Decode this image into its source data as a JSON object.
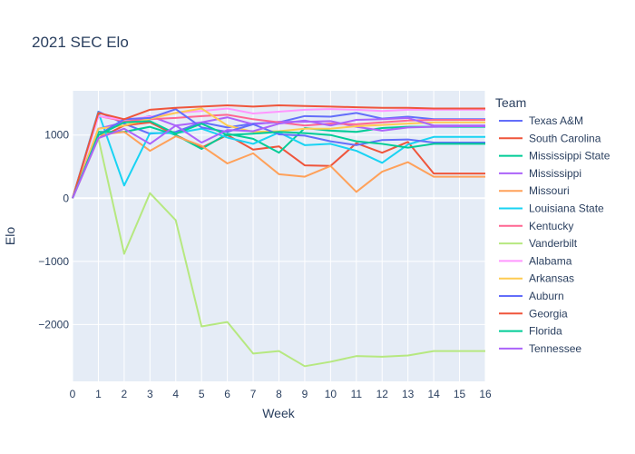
{
  "chart_data": {
    "type": "line",
    "title": "2021 SEC Elo",
    "xlabel": "Week",
    "ylabel": "Elo",
    "legend_title": "Team",
    "legend_position": "right",
    "grid": true,
    "xlim": [
      0,
      16
    ],
    "ylim": [
      -2900,
      1700
    ],
    "x": [
      0,
      1,
      2,
      3,
      4,
      5,
      6,
      7,
      8,
      9,
      10,
      11,
      12,
      13,
      14,
      15,
      16
    ],
    "x_ticks": [
      0,
      1,
      2,
      3,
      4,
      5,
      6,
      7,
      8,
      9,
      10,
      11,
      12,
      13,
      14,
      15,
      16
    ],
    "y_ticks": [
      -2000,
      -1000,
      0,
      1000
    ],
    "y_tick_labels": [
      "−2000",
      "−1000",
      "0",
      "1000"
    ],
    "series": [
      {
        "name": "Texas A&M",
        "color": "#636efa",
        "values": [
          0,
          1370,
          1180,
          1020,
          1050,
          1200,
          1120,
          1180,
          1200,
          1300,
          1290,
          1350,
          1260,
          1290,
          1250,
          1250,
          1250
        ]
      },
      {
        "name": "South Carolina",
        "color": "#EF553B",
        "values": [
          0,
          950,
          1150,
          1200,
          1000,
          800,
          1000,
          770,
          820,
          520,
          510,
          870,
          720,
          890,
          390,
          390,
          390
        ]
      },
      {
        "name": "Mississippi State",
        "color": "#00cc96",
        "values": [
          0,
          1050,
          1050,
          1130,
          1000,
          780,
          1020,
          940,
          720,
          1110,
          1070,
          1050,
          1110,
          1130,
          1130,
          1130,
          1130
        ]
      },
      {
        "name": "Mississippi",
        "color": "#ab63fa",
        "values": [
          0,
          1100,
          1200,
          1300,
          1150,
          1200,
          1280,
          1170,
          1210,
          1210,
          1220,
          1130,
          1070,
          1120,
          1130,
          1140,
          1140
        ]
      },
      {
        "name": "Missouri",
        "color": "#FFA15A",
        "values": [
          0,
          1000,
          1050,
          750,
          980,
          830,
          550,
          710,
          380,
          340,
          510,
          100,
          420,
          570,
          340,
          340,
          340
        ]
      },
      {
        "name": "Louisiana State",
        "color": "#19d3f3",
        "values": [
          0,
          1360,
          200,
          1030,
          1030,
          1100,
          960,
          860,
          1040,
          840,
          860,
          750,
          560,
          850,
          970,
          970,
          970
        ]
      },
      {
        "name": "Kentucky",
        "color": "#FF6692",
        "values": [
          0,
          1300,
          1220,
          1250,
          1270,
          1300,
          1320,
          1250,
          1200,
          1150,
          1180,
          1170,
          1200,
          1230,
          1240,
          1240,
          1240
        ]
      },
      {
        "name": "Vanderbilt",
        "color": "#B6E880",
        "values": [
          0,
          950,
          -880,
          80,
          -350,
          -2030,
          -1960,
          -2460,
          -2420,
          -2660,
          -2590,
          -2500,
          -2510,
          -2490,
          -2420,
          -2420,
          -2420
        ]
      },
      {
        "name": "Alabama",
        "color": "#FF97FF",
        "values": [
          0,
          1300,
          1240,
          1290,
          1350,
          1380,
          1420,
          1340,
          1370,
          1400,
          1410,
          1400,
          1380,
          1400,
          1400,
          1400,
          1400
        ]
      },
      {
        "name": "Arkansas",
        "color": "#FECB52",
        "values": [
          0,
          1100,
          1150,
          1260,
          1350,
          1420,
          1150,
          1050,
          1060,
          1100,
          1100,
          1140,
          1160,
          1180,
          1200,
          1200,
          1200
        ]
      },
      {
        "name": "Auburn",
        "color": "#636efa",
        "values": [
          0,
          1000,
          1250,
          1270,
          1410,
          1120,
          1050,
          1170,
          1010,
          990,
          900,
          840,
          920,
          930,
          880,
          880,
          880
        ]
      },
      {
        "name": "Georgia",
        "color": "#EF553B",
        "values": [
          0,
          1350,
          1250,
          1400,
          1430,
          1450,
          1470,
          1450,
          1470,
          1460,
          1450,
          1440,
          1430,
          1430,
          1420,
          1420,
          1420
        ]
      },
      {
        "name": "Florida",
        "color": "#00cc96",
        "values": [
          0,
          1000,
          1200,
          1220,
          1020,
          1180,
          1000,
          1020,
          1050,
          1030,
          1000,
          900,
          860,
          800,
          860,
          860,
          860
        ]
      },
      {
        "name": "Tennessee",
        "color": "#ab63fa",
        "values": [
          0,
          950,
          1100,
          860,
          1150,
          880,
          1080,
          1060,
          1180,
          1230,
          1150,
          1240,
          1250,
          1270,
          1150,
          1150,
          1150
        ]
      }
    ]
  }
}
